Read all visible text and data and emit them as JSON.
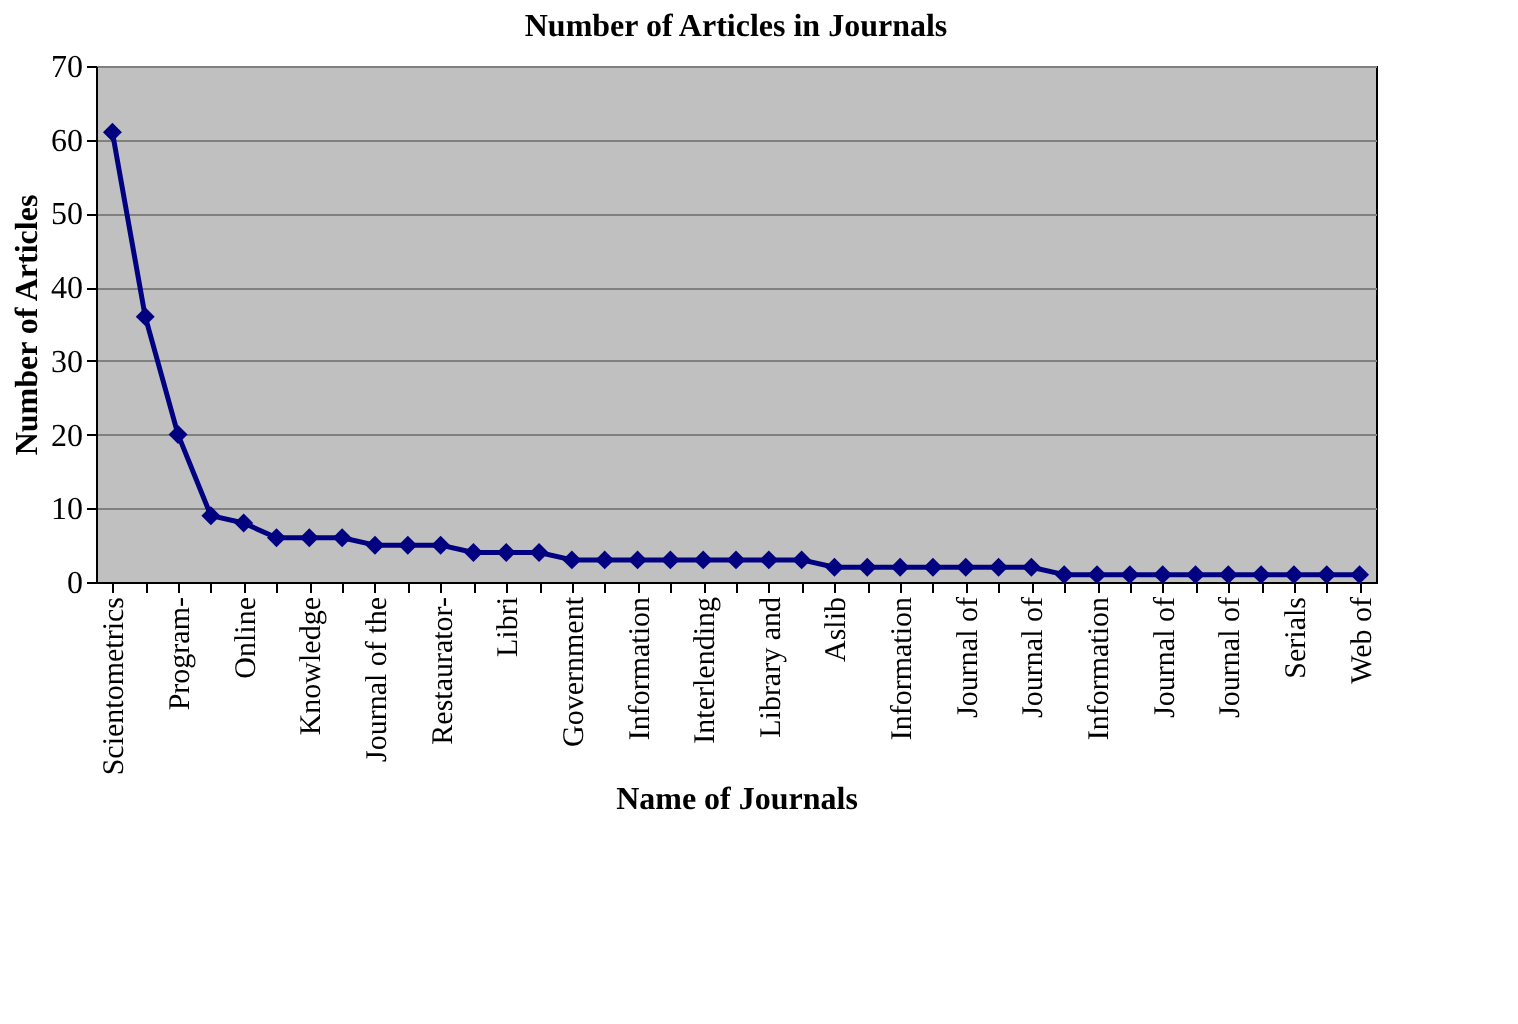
{
  "chart_data": {
    "type": "line",
    "title": "Number of Articles in Journals",
    "xlabel": "Name of Journals",
    "ylabel": "Number of Articles",
    "categories": [
      "Scientometrics",
      null,
      "Program-",
      null,
      "Online",
      null,
      "Knowledge",
      null,
      "Journal of the",
      null,
      "Restaurator-",
      null,
      "Libri",
      null,
      "Government",
      null,
      "Information",
      null,
      "Interlending",
      null,
      "Library and",
      null,
      "Aslib",
      null,
      "Information",
      null,
      "Journal of",
      null,
      "Journal of",
      null,
      "Information",
      null,
      "Journal of",
      null,
      "Journal of",
      null,
      "Serials",
      null,
      "Web of"
    ],
    "series": [
      {
        "color": "#000080",
        "values": [
          61,
          36,
          20,
          9,
          8,
          6,
          6,
          6,
          5,
          5,
          5,
          4,
          4,
          4,
          3,
          3,
          3,
          3,
          3,
          3,
          3,
          3,
          2,
          2,
          2,
          2,
          2,
          2,
          2,
          1,
          1,
          1,
          1,
          1,
          1,
          1,
          1,
          1,
          1
        ]
      }
    ],
    "ylim": [
      0,
      70
    ],
    "yticks": [
      0,
      10,
      20,
      30,
      40,
      50,
      60,
      70
    ],
    "grid": "y",
    "marker": "diamond",
    "line_style": "solid"
  }
}
